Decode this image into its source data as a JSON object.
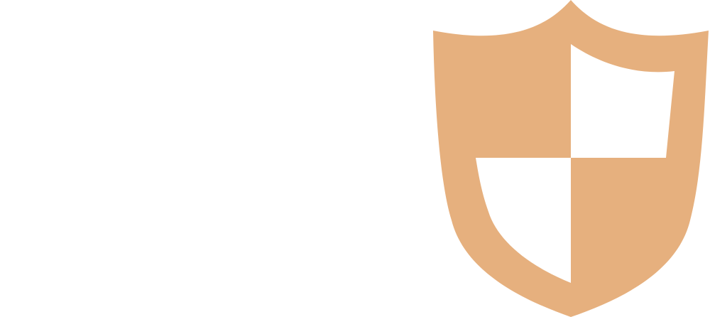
{
  "icon": {
    "name": "shield-icon",
    "color": "#E6B07E",
    "background": "#ffffff"
  }
}
